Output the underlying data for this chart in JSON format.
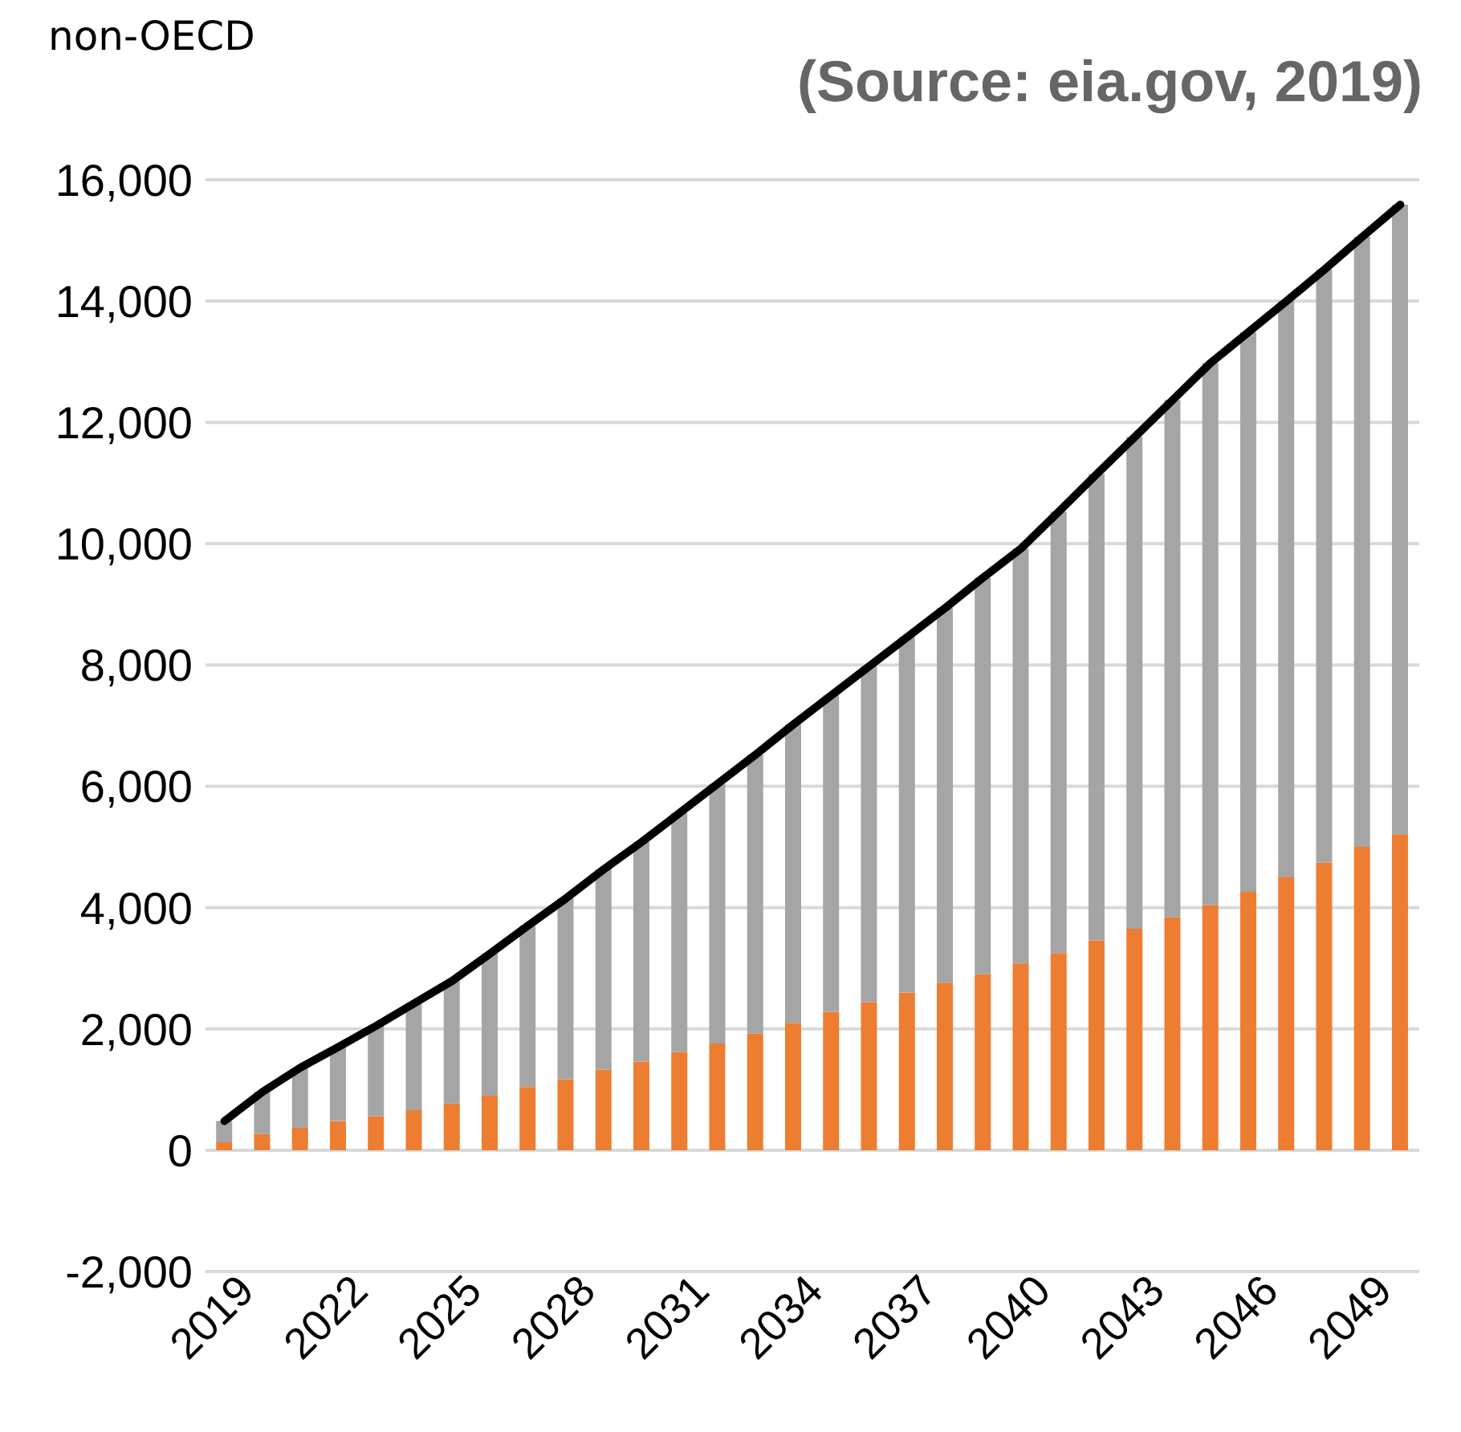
{
  "chart_data": {
    "type": "bar",
    "title": "non-OECD",
    "annotations": [
      "(Source: eia.gov, 2019)"
    ],
    "categories": [
      "2019",
      null,
      null,
      "2022",
      null,
      null,
      "2025",
      null,
      null,
      "2028",
      null,
      null,
      "2031",
      null,
      null,
      "2034",
      null,
      null,
      "2037",
      null,
      null,
      "2040",
      null,
      null,
      "2043",
      null,
      null,
      "2046",
      null,
      null,
      "2049",
      null
    ],
    "series": [
      {
        "color": "#ed7d31",
        "values": [
          130,
          270,
          370,
          480,
          560,
          660,
          770,
          900,
          1040,
          1170,
          1330,
          1460,
          1620,
          1760,
          1920,
          2100,
          2280,
          2440,
          2600,
          2760,
          2900,
          3080,
          3250,
          3460,
          3650,
          3840,
          4040,
          4260,
          4500,
          4740,
          5000,
          5210
        ]
      },
      {
        "color": "#a5a5a5",
        "values": [
          350,
          690,
          990,
          1220,
          1490,
          1760,
          2020,
          2340,
          2660,
          2980,
          3300,
          3620,
          3940,
          4280,
          4600,
          4920,
          5220,
          5540,
          5860,
          6180,
          6540,
          6840,
          7280,
          7690,
          8110,
          8530,
          8940,
          9230,
          9500,
          9780,
          10060,
          10380
        ]
      },
      {
        "type": "line",
        "color": "#000000",
        "values": [
          480,
          960,
          1360,
          1700,
          2050,
          2420,
          2790,
          3240,
          3700,
          4150,
          4630,
          5080,
          5560,
          6040,
          6520,
          7020,
          7500,
          7980,
          8460,
          8940,
          9440,
          9920,
          10530,
          11150,
          11760,
          12370,
          12980,
          13490,
          14000,
          14520,
          15060,
          15590
        ]
      }
    ],
    "stacked": true,
    "ylim": [
      -2000,
      16000
    ],
    "yticks": [
      {
        "value": -2000,
        "label": "-2,000"
      },
      {
        "value": 0,
        "label": "0"
      },
      {
        "value": 2000,
        "label": "2,000"
      },
      {
        "value": 4000,
        "label": "4,000"
      },
      {
        "value": 6000,
        "label": "6,000"
      },
      {
        "value": 8000,
        "label": "8,000"
      },
      {
        "value": 10000,
        "label": "10,000"
      },
      {
        "value": 12000,
        "label": "12,000"
      },
      {
        "value": 14000,
        "label": "14,000"
      },
      {
        "value": 16000,
        "label": "16,000"
      }
    ],
    "grid": "y",
    "marker": "none",
    "line_style": "solid"
  }
}
